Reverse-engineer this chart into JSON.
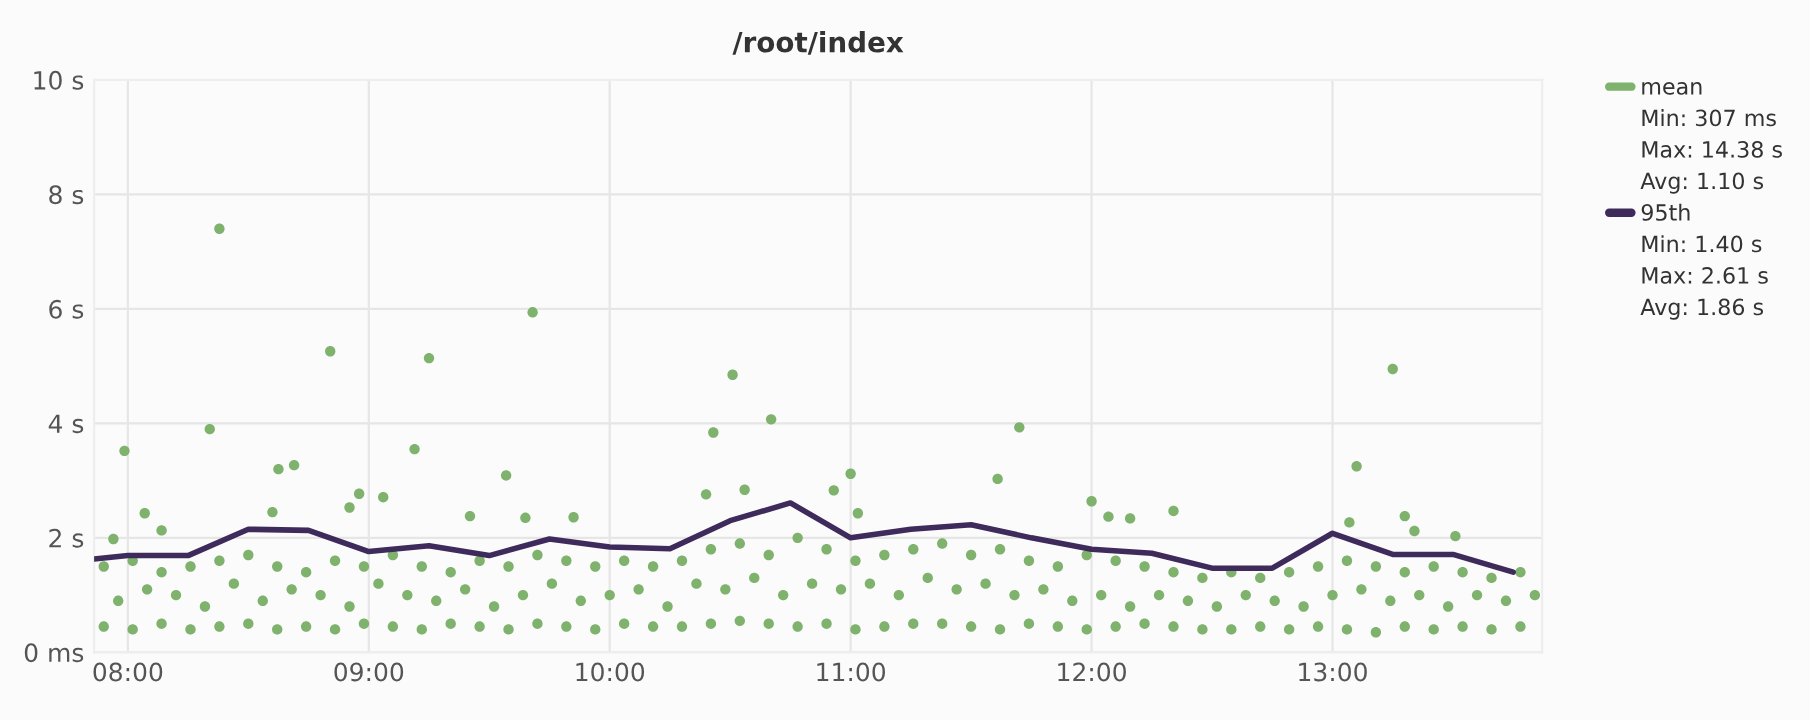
{
  "chart_data": {
    "type": "scatter",
    "title": "/root/index",
    "xlim": [
      7.86,
      13.87
    ],
    "ylim": [
      0,
      10
    ],
    "xticks": [
      {
        "value": 8,
        "label": "08:00"
      },
      {
        "value": 9,
        "label": "09:00"
      },
      {
        "value": 10,
        "label": "10:00"
      },
      {
        "value": 11,
        "label": "11:00"
      },
      {
        "value": 12,
        "label": "12:00"
      },
      {
        "value": 13,
        "label": "13:00"
      }
    ],
    "yticks": [
      {
        "value": 0,
        "label": "0 ms"
      },
      {
        "value": 2,
        "label": "2 s"
      },
      {
        "value": 4,
        "label": "4 s"
      },
      {
        "value": 6,
        "label": "6 s"
      },
      {
        "value": 8,
        "label": "8 s"
      },
      {
        "value": 10,
        "label": "10 s"
      }
    ],
    "grid": true,
    "legend": "right",
    "annotations": [
      "Min: 307 ms",
      "Max: 14.38 s",
      "Avg: 1.10 s",
      "Min: 1.40 s",
      "Max: 2.61 s",
      "Avg: 1.86 s"
    ],
    "series": [
      {
        "name": "mean",
        "color": "#7eb26d",
        "marker": "circle",
        "x": [
          7.9,
          8.02,
          8.14,
          8.26,
          8.38,
          8.5,
          8.62,
          8.74,
          8.86,
          8.98,
          9.1,
          9.22,
          9.34,
          9.46,
          9.58,
          9.7,
          9.82,
          9.94,
          10.06,
          10.18,
          10.3,
          10.42,
          10.54,
          10.66,
          10.78,
          10.9,
          11.02,
          11.14,
          11.26,
          11.38,
          11.5,
          11.62,
          11.74,
          11.86,
          11.98,
          12.1,
          12.22,
          12.34,
          12.46,
          12.58,
          12.7,
          12.82,
          12.94,
          13.06,
          13.18,
          13.3,
          13.42,
          13.54,
          13.66,
          13.78,
          7.9,
          8.02,
          8.14,
          8.26,
          8.38,
          8.5,
          8.62,
          8.74,
          8.86,
          8.98,
          9.1,
          9.22,
          9.34,
          9.46,
          9.58,
          9.7,
          9.82,
          9.94,
          10.06,
          10.18,
          10.3,
          10.42,
          10.54,
          10.66,
          10.78,
          10.9,
          11.02,
          11.14,
          11.26,
          11.38,
          11.5,
          11.62,
          11.74,
          11.86,
          11.98,
          12.1,
          12.22,
          12.34,
          12.46,
          12.58,
          12.7,
          12.82,
          12.94,
          13.06,
          13.18,
          13.3,
          13.42,
          13.54,
          13.66,
          13.78,
          7.96,
          8.08,
          8.2,
          8.32,
          8.44,
          8.56,
          8.68,
          8.8,
          8.92,
          9.04,
          9.16,
          9.28,
          9.4,
          9.52,
          9.64,
          9.76,
          9.88,
          10.0,
          10.12,
          10.24,
          10.36,
          10.48,
          10.6,
          10.72,
          10.84,
          10.96,
          11.08,
          11.2,
          11.32,
          11.44,
          11.56,
          11.68,
          11.8,
          11.92,
          12.04,
          12.16,
          12.28,
          12.4,
          12.52,
          12.64,
          12.76,
          12.88,
          13.0,
          13.12,
          13.24,
          13.36,
          13.48,
          13.6,
          13.72,
          13.84,
          7.986,
          7.94,
          8.07,
          8.14,
          8.34,
          8.38,
          8.625,
          8.69,
          8.6,
          8.84,
          8.96,
          8.92,
          9.06,
          9.19,
          9.25,
          9.42,
          9.57,
          9.65,
          9.68,
          9.85,
          10.4,
          10.43,
          10.51,
          10.56,
          10.67,
          10.93,
          11.0,
          11.03,
          11.61,
          11.7,
          12.0,
          12.07,
          12.16,
          12.34,
          13.07,
          13.1,
          13.25,
          13.3,
          13.34,
          13.51
        ],
        "values": [
          1.5,
          1.6,
          1.4,
          1.5,
          1.6,
          1.7,
          1.5,
          1.4,
          1.6,
          1.5,
          1.7,
          1.5,
          1.4,
          1.6,
          1.5,
          1.7,
          1.6,
          1.5,
          1.6,
          1.5,
          1.6,
          1.8,
          1.9,
          1.7,
          2.0,
          1.8,
          1.6,
          1.7,
          1.8,
          1.9,
          1.7,
          1.8,
          1.6,
          1.5,
          1.7,
          1.6,
          1.5,
          1.4,
          1.3,
          1.4,
          1.3,
          1.4,
          1.5,
          1.6,
          1.5,
          1.4,
          1.5,
          1.4,
          1.3,
          1.4,
          0.45,
          0.4,
          0.5,
          0.4,
          0.45,
          0.5,
          0.4,
          0.45,
          0.4,
          0.5,
          0.45,
          0.4,
          0.5,
          0.45,
          0.4,
          0.5,
          0.45,
          0.4,
          0.5,
          0.45,
          0.45,
          0.5,
          0.55,
          0.5,
          0.45,
          0.5,
          0.4,
          0.45,
          0.5,
          0.5,
          0.45,
          0.4,
          0.5,
          0.45,
          0.4,
          0.45,
          0.5,
          0.45,
          0.4,
          0.4,
          0.45,
          0.4,
          0.45,
          0.4,
          0.35,
          0.45,
          0.4,
          0.45,
          0.4,
          0.45,
          0.9,
          1.1,
          1.0,
          0.8,
          1.2,
          0.9,
          1.1,
          1.0,
          0.8,
          1.2,
          1.0,
          0.9,
          1.1,
          0.8,
          1.0,
          1.2,
          0.9,
          1.0,
          1.1,
          0.8,
          1.2,
          1.1,
          1.3,
          1.0,
          1.2,
          1.1,
          1.2,
          1.0,
          1.3,
          1.1,
          1.2,
          1.0,
          1.1,
          0.9,
          1.0,
          0.8,
          1.0,
          0.9,
          0.8,
          1.0,
          0.9,
          0.8,
          1.0,
          1.1,
          0.9,
          1.0,
          0.8,
          1.0,
          0.9,
          1.0,
          3.52,
          1.98,
          2.43,
          2.13,
          3.9,
          7.4,
          3.2,
          3.27,
          2.45,
          5.26,
          2.77,
          2.53,
          2.71,
          3.55,
          5.14,
          2.38,
          3.09,
          2.35,
          5.94,
          2.36,
          2.76,
          3.84,
          4.85,
          2.84,
          4.07,
          2.83,
          3.12,
          2.43,
          3.03,
          3.93,
          2.64,
          2.37,
          2.34,
          2.47,
          2.27,
          3.25,
          4.95,
          2.38,
          2.12,
          2.03
        ]
      },
      {
        "name": "95th",
        "type": "line",
        "color": "#3f2b5b",
        "line_style": "solid",
        "marker": "none",
        "x": [
          7.86,
          8.0,
          8.25,
          8.5,
          8.75,
          9.0,
          9.25,
          9.5,
          9.75,
          10.0,
          10.25,
          10.5,
          10.75,
          11.0,
          11.25,
          11.5,
          11.75,
          12.0,
          12.25,
          12.5,
          12.75,
          13.0,
          13.25,
          13.5,
          13.75
        ],
        "values": [
          1.63,
          1.69,
          1.69,
          2.15,
          2.13,
          1.76,
          1.86,
          1.69,
          1.98,
          1.84,
          1.81,
          2.3,
          2.61,
          2.0,
          2.15,
          2.23,
          2.0,
          1.8,
          1.73,
          1.47,
          1.47,
          2.08,
          1.71,
          1.71,
          1.4
        ]
      }
    ]
  }
}
